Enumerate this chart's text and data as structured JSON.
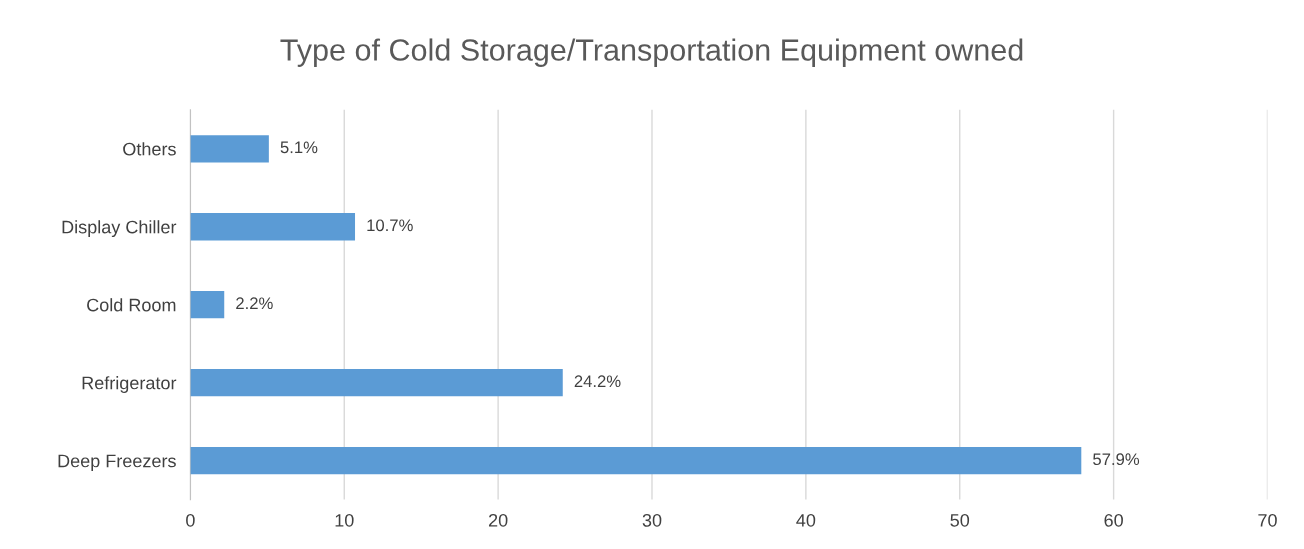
{
  "chart_data": {
    "type": "bar",
    "orientation": "horizontal",
    "title": "Type of Cold Storage/Transportation Equipment owned",
    "categories": [
      "Others",
      "Display Chiller",
      "Cold Room",
      "Refrigerator",
      "Deep Freezers"
    ],
    "values": [
      5.1,
      10.7,
      2.2,
      24.2,
      57.9
    ],
    "value_labels": [
      "5.1%",
      "10.7%",
      "2.2%",
      "24.2%",
      "57.9%"
    ],
    "color": "#5b9bd5",
    "xlim": [
      0,
      70
    ],
    "xticks": [
      0,
      10,
      20,
      30,
      40,
      50,
      60,
      70
    ],
    "grid": "x",
    "legend": false
  }
}
